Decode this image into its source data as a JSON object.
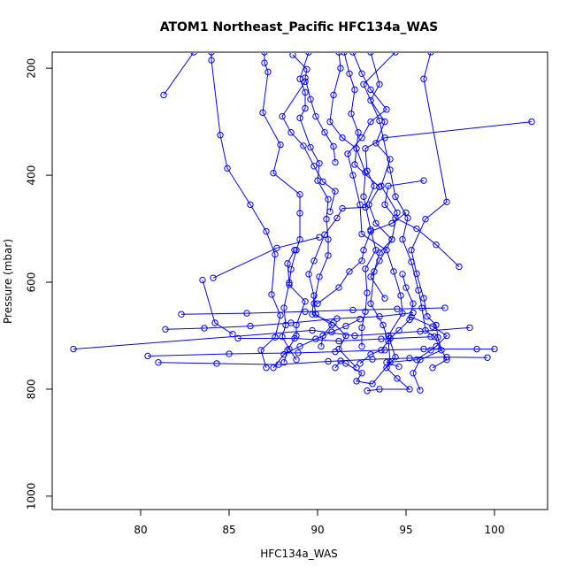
{
  "chart_data": {
    "type": "line",
    "title": "ATOM1 Northeast_Pacific HFC134a_WAS",
    "xlabel": "HFC134a_WAS",
    "ylabel": "Pressure (mbar)",
    "xlim": [
      75,
      103
    ],
    "ylim": [
      1025,
      170
    ],
    "y_reversed": true,
    "x_ticks": [
      80,
      85,
      90,
      95,
      100
    ],
    "x_tick_labels": [
      "80",
      "85",
      "90",
      "95",
      "100"
    ],
    "y_ticks": [
      200,
      400,
      600,
      800,
      1000
    ],
    "y_tick_labels": [
      "200",
      "400",
      "600",
      "800",
      "1000"
    ],
    "grid": false,
    "marker": "open-circle",
    "color": "#0000ff",
    "series": [
      {
        "values": [
          [
            84.0,
            170
          ],
          [
            84.0,
            185
          ],
          [
            84.5,
            325
          ],
          [
            84.9,
            387
          ],
          [
            86.2,
            455
          ],
          [
            87.1,
            505
          ],
          [
            87.6,
            548
          ],
          [
            87.4,
            623
          ],
          [
            87.9,
            662
          ],
          [
            87.6,
            703
          ],
          [
            86.8,
            727
          ],
          [
            87.1,
            760
          ]
        ]
      },
      {
        "values": [
          [
            87.0,
            170
          ],
          [
            87.0,
            190
          ],
          [
            87.2,
            207
          ],
          [
            86.9,
            283
          ],
          [
            87.9,
            343
          ],
          [
            87.5,
            396
          ],
          [
            89.0,
            436
          ],
          [
            89.0,
            471
          ],
          [
            89.0,
            520
          ],
          [
            88.8,
            540
          ],
          [
            88.5,
            576
          ],
          [
            88.4,
            605
          ],
          [
            89.3,
            636
          ],
          [
            88.8,
            680
          ],
          [
            88.8,
            700
          ],
          [
            88.3,
            727
          ],
          [
            88.1,
            750
          ]
        ]
      },
      {
        "values": [
          [
            81.3,
            250
          ],
          [
            83.0,
            170
          ]
        ]
      },
      {
        "values": [
          [
            76.2,
            725
          ],
          [
            89.7,
            690
          ],
          [
            92.1,
            700
          ],
          [
            95.8,
            692
          ],
          [
            98.6,
            685
          ]
        ]
      },
      {
        "values": [
          [
            80.4,
            738
          ],
          [
            85.0,
            734
          ],
          [
            88.9,
            732
          ],
          [
            91.0,
            730
          ],
          [
            93.8,
            727
          ],
          [
            96.0,
            725
          ],
          [
            99.0,
            725
          ],
          [
            100.0,
            725
          ]
        ]
      },
      {
        "values": [
          [
            81.0,
            750
          ],
          [
            84.3,
            752
          ],
          [
            87.8,
            754
          ],
          [
            90.6,
            748
          ],
          [
            93.1,
            744
          ],
          [
            95.2,
            742
          ],
          [
            97.3,
            740
          ],
          [
            99.6,
            741
          ]
        ]
      },
      {
        "values": [
          [
            81.4,
            688
          ],
          [
            83.6,
            686
          ],
          [
            86.2,
            682
          ],
          [
            88.5,
            676
          ],
          [
            91.1,
            668
          ],
          [
            93.5,
            664
          ],
          [
            95.4,
            657
          ]
        ]
      },
      {
        "values": [
          [
            82.3,
            660
          ],
          [
            86.0,
            658
          ],
          [
            89.3,
            655
          ],
          [
            92.0,
            652
          ],
          [
            94.5,
            650
          ],
          [
            97.2,
            648
          ]
        ]
      },
      {
        "values": [
          [
            83.5,
            596
          ],
          [
            84.2,
            676
          ],
          [
            85.2,
            697
          ]
        ]
      },
      {
        "values": [
          [
            84.1,
            592
          ],
          [
            87.7,
            536
          ],
          [
            90.1,
            516
          ]
        ]
      },
      {
        "values": [
          [
            85.5,
            705
          ],
          [
            88.7,
            705
          ],
          [
            91.2,
            710
          ],
          [
            93.6,
            706
          ],
          [
            96.4,
            702
          ]
        ]
      },
      {
        "values": [
          [
            89.5,
            170
          ],
          [
            89.0,
            220
          ],
          [
            89.3,
            245
          ],
          [
            89.3,
            275
          ],
          [
            89.0,
            293
          ],
          [
            89.6,
            348
          ],
          [
            90.1,
            378
          ],
          [
            90.0,
            410
          ],
          [
            90.6,
            445
          ],
          [
            90.5,
            482
          ],
          [
            90.6,
            520
          ],
          [
            90.6,
            550
          ],
          [
            90.1,
            590
          ],
          [
            89.8,
            640
          ],
          [
            89.9,
            660
          ],
          [
            90.8,
            680
          ],
          [
            90.3,
            700
          ],
          [
            90.2,
            720
          ]
        ]
      },
      {
        "values": [
          [
            91.2,
            170
          ],
          [
            91.3,
            200
          ],
          [
            90.9,
            250
          ],
          [
            90.7,
            300
          ],
          [
            91.4,
            330
          ],
          [
            92.2,
            350
          ],
          [
            92.7,
            395
          ],
          [
            92.6,
            440
          ],
          [
            93.0,
            502
          ],
          [
            93.3,
            540
          ],
          [
            92.7,
            575
          ],
          [
            92.8,
            620
          ],
          [
            92.7,
            655
          ],
          [
            92.5,
            685
          ],
          [
            92.5,
            720
          ]
        ]
      },
      {
        "values": [
          [
            91.5,
            170
          ],
          [
            91.8,
            210
          ],
          [
            92.1,
            240
          ],
          [
            91.9,
            285
          ],
          [
            92.3,
            320
          ],
          [
            92.1,
            380
          ],
          [
            93.5,
            422
          ],
          [
            92.9,
            455
          ],
          [
            93.3,
            490
          ],
          [
            94.2,
            520
          ],
          [
            93.5,
            560
          ],
          [
            93.0,
            590
          ],
          [
            93.8,
            630
          ]
        ]
      },
      {
        "values": [
          [
            92.0,
            170
          ],
          [
            92.5,
            210
          ],
          [
            93.0,
            240
          ],
          [
            93.9,
            277
          ],
          [
            93.0,
            300
          ],
          [
            92.5,
            330
          ],
          [
            91.7,
            360
          ],
          [
            92.0,
            400
          ],
          [
            92.4,
            455
          ],
          [
            92.5,
            510
          ],
          [
            93.9,
            540
          ],
          [
            94.3,
            580
          ],
          [
            94.7,
            625
          ],
          [
            94.8,
            658
          ],
          [
            94.0,
            700
          ],
          [
            94.4,
            740
          ],
          [
            93.9,
            760
          ],
          [
            94.5,
            780
          ],
          [
            95.2,
            800
          ],
          [
            93.5,
            800
          ],
          [
            92.8,
            803
          ]
        ]
      },
      {
        "values": [
          [
            93.0,
            170
          ],
          [
            93.5,
            230
          ],
          [
            93.0,
            260
          ],
          [
            93.8,
            300
          ],
          [
            93.3,
            340
          ],
          [
            94.1,
            370
          ],
          [
            93.6,
            420
          ],
          [
            94.5,
            470
          ],
          [
            94.2,
            520
          ],
          [
            93.5,
            545
          ],
          [
            93.2,
            580
          ],
          [
            93.0,
            640
          ],
          [
            93.7,
            680
          ],
          [
            94.0,
            710
          ],
          [
            94.1,
            750
          ],
          [
            93.1,
            790
          ],
          [
            92.2,
            785
          ],
          [
            92.5,
            770
          ],
          [
            91.6,
            752
          ],
          [
            91.3,
            747
          ],
          [
            91.0,
            760
          ]
        ]
      },
      {
        "values": [
          [
            94.4,
            170
          ],
          [
            92.6,
            230
          ],
          [
            93.5,
            298
          ],
          [
            94.1,
            390
          ],
          [
            94.4,
            440
          ],
          [
            95.1,
            480
          ],
          [
            94.8,
            520
          ],
          [
            95.3,
            562
          ],
          [
            95.7,
            615
          ],
          [
            95.9,
            648
          ],
          [
            96.1,
            690
          ],
          [
            96.6,
            702
          ],
          [
            97.3,
            745
          ],
          [
            96.5,
            760
          ]
        ]
      },
      {
        "values": [
          [
            96.4,
            170
          ],
          [
            96.0,
            220
          ],
          [
            97.3,
            450
          ],
          [
            96.1,
            482
          ],
          [
            95.3,
            540
          ],
          [
            95.6,
            584
          ],
          [
            96.0,
            630
          ],
          [
            96.2,
            664
          ],
          [
            96.7,
            680
          ],
          [
            96.8,
            703
          ],
          [
            97.0,
            727
          ],
          [
            95.8,
            745
          ],
          [
            95.4,
            770
          ],
          [
            95.8,
            802
          ]
        ]
      },
      {
        "values": [
          [
            102.1,
            300
          ],
          [
            93.8,
            330
          ],
          [
            92.7,
            350
          ],
          [
            92.8,
            392
          ],
          [
            93.2,
            420
          ],
          [
            92.7,
            460
          ],
          [
            91.4,
            462
          ],
          [
            91.1,
            480
          ],
          [
            90.4,
            511
          ],
          [
            89.8,
            560
          ],
          [
            89.5,
            585
          ],
          [
            89.8,
            625
          ],
          [
            89.7,
            660
          ],
          [
            90.9,
            676
          ],
          [
            91.6,
            700
          ],
          [
            91.2,
            725
          ],
          [
            92.2,
            760
          ]
        ]
      },
      {
        "values": [
          [
            98.0,
            571
          ],
          [
            96.7,
            530
          ],
          [
            95.6,
            500
          ],
          [
            94.4,
            480
          ],
          [
            93.8,
            455
          ],
          [
            94.0,
            420
          ],
          [
            96.0,
            410
          ]
        ]
      },
      {
        "values": [
          [
            88.7,
            540
          ],
          [
            88.3,
            565
          ],
          [
            88.4,
            601
          ],
          [
            88.1,
            648
          ],
          [
            88.2,
            680
          ],
          [
            88.0,
            702
          ],
          [
            88.4,
            725
          ],
          [
            88.8,
            745
          ]
        ]
      },
      {
        "values": [
          [
            90.0,
            640
          ],
          [
            91.2,
            610
          ],
          [
            91.8,
            580
          ],
          [
            92.5,
            560
          ],
          [
            92.6,
            540
          ],
          [
            93.0,
            505
          ],
          [
            94.2,
            490
          ],
          [
            95.0,
            470
          ]
        ]
      },
      {
        "values": [
          [
            94.6,
            758
          ],
          [
            93.9,
            750
          ],
          [
            95.6,
            745
          ],
          [
            96.4,
            727
          ],
          [
            96.7,
            720
          ],
          [
            97.3,
            700
          ],
          [
            96.5,
            683
          ],
          [
            95.3,
            665
          ]
        ]
      },
      {
        "values": [
          [
            92.4,
            752
          ],
          [
            93.0,
            735
          ],
          [
            93.6,
            727
          ],
          [
            94.1,
            705
          ],
          [
            94.6,
            690
          ],
          [
            95.2,
            670
          ],
          [
            95.4,
            640
          ],
          [
            95.0,
            610
          ],
          [
            94.8,
            585
          ]
        ]
      },
      {
        "values": [
          [
            87.5,
            760
          ],
          [
            88.1,
            735
          ],
          [
            89.0,
            720
          ],
          [
            89.9,
            706
          ],
          [
            90.8,
            693
          ],
          [
            91.6,
            682
          ],
          [
            92.4,
            669
          ]
        ]
      },
      {
        "values": [
          [
            89.3,
            225
          ],
          [
            88.0,
            290
          ],
          [
            88.5,
            320
          ],
          [
            89.2,
            345
          ],
          [
            89.8,
            383
          ],
          [
            90.3,
            412
          ],
          [
            91.0,
            430
          ],
          [
            90.7,
            468
          ]
        ]
      },
      {
        "values": [
          [
            88.6,
            175
          ],
          [
            89.4,
            202
          ],
          [
            89.3,
            218
          ],
          [
            89.6,
            258
          ],
          [
            89.9,
            290
          ],
          [
            90.4,
            320
          ],
          [
            90.9,
            346
          ],
          [
            91.0,
            376
          ]
        ]
      }
    ]
  }
}
